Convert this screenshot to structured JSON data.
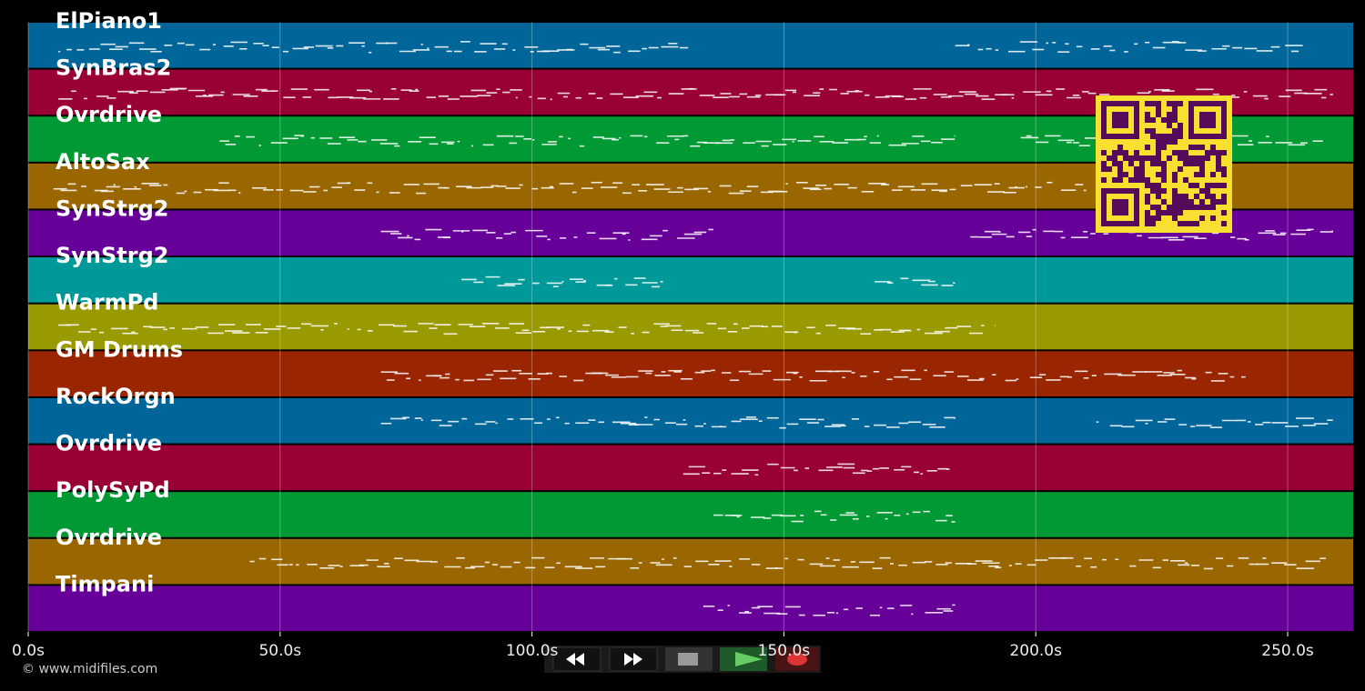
{
  "chart_data": {
    "type": "pianoroll",
    "xlim": [
      0,
      263
    ],
    "xticks": [
      {
        "value": 0,
        "label": "0.0s"
      },
      {
        "value": 50,
        "label": "50.0s"
      },
      {
        "value": 100,
        "label": "100.0s"
      },
      {
        "value": 150,
        "label": "150.0s"
      },
      {
        "value": 200,
        "label": "200.0s"
      },
      {
        "value": 250,
        "label": "250.0s"
      }
    ],
    "grid": true,
    "tracks": [
      {
        "name": "ElPiano1",
        "color": "#006699",
        "spans": [
          [
            6,
            131
          ],
          [
            184,
            253
          ]
        ]
      },
      {
        "name": "SynBras2",
        "color": "#990033",
        "spans": [
          [
            6,
            259
          ]
        ]
      },
      {
        "name": "Ovrdrive",
        "color": "#009933",
        "spans": [
          [
            38,
            184
          ],
          [
            197,
            257
          ]
        ]
      },
      {
        "name": "AltoSax",
        "color": "#996600",
        "spans": [
          [
            5,
            211
          ]
        ]
      },
      {
        "name": "SynStrg2",
        "color": "#660099",
        "spans": [
          [
            70,
            136
          ],
          [
            187,
            259
          ]
        ]
      },
      {
        "name": "SynStrg2",
        "color": "#009999",
        "spans": [
          [
            86,
            126
          ],
          [
            168,
            184
          ]
        ]
      },
      {
        "name": "WarmPd",
        "color": "#999900",
        "spans": [
          [
            6,
            192
          ]
        ]
      },
      {
        "name": "GM Drums",
        "color": "#992600",
        "spans": [
          [
            70,
            243
          ]
        ]
      },
      {
        "name": "RockOrgn",
        "color": "#006699",
        "spans": [
          [
            70,
            184
          ],
          [
            212,
            259
          ]
        ]
      },
      {
        "name": "Ovrdrive",
        "color": "#990033",
        "spans": [
          [
            130,
            184
          ]
        ]
      },
      {
        "name": "PolySyPd",
        "color": "#009933",
        "spans": [
          [
            136,
            184
          ]
        ]
      },
      {
        "name": "Ovrdrive",
        "color": "#996600",
        "spans": [
          [
            44,
            258
          ]
        ]
      },
      {
        "name": "Timpani",
        "color": "#660099",
        "spans": [
          [
            134,
            184
          ]
        ]
      }
    ]
  },
  "footer": "© www.midifiles.com"
}
